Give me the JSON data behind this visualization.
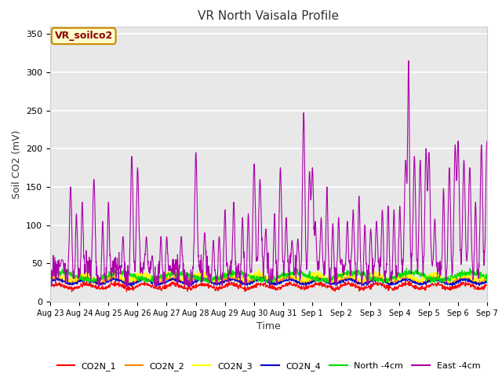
{
  "title": "VR North Vaisala Profile",
  "ylabel": "Soil CO2 (mV)",
  "xlabel": "Time",
  "annotation": "VR_soilco2",
  "ylim": [
    0,
    360
  ],
  "yticks": [
    0,
    50,
    100,
    150,
    200,
    250,
    300,
    350
  ],
  "x_tick_labels": [
    "Aug 23",
    "Aug 24",
    "Aug 25",
    "Aug 26",
    "Aug 27",
    "Aug 28",
    "Aug 29",
    "Aug 30",
    "Aug 31",
    "Sep 1",
    "Sep 2",
    "Sep 3",
    "Sep 4",
    "Sep 5",
    "Sep 6",
    "Sep 7"
  ],
  "series_colors": {
    "CO2N_1": "#ff0000",
    "CO2N_2": "#ff8800",
    "CO2N_3": "#ffff00",
    "CO2N_4": "#0000cc",
    "North_4cm": "#00dd00",
    "East_4cm": "#aa00aa"
  },
  "bg_color": "#ffffff",
  "plot_bg_color": "#e8e8e8",
  "grid_color": "#ffffff",
  "annotation_bg": "#ffffcc",
  "annotation_border": "#cc8800",
  "title_fontsize": 11,
  "axis_fontsize": 9,
  "tick_fontsize": 8,
  "legend_fontsize": 8
}
